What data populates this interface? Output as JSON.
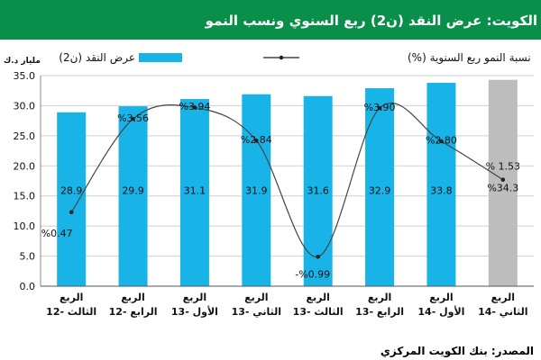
{
  "title": "الكويت: عرض النقد (ن2) ربع السنوي ونسب النمو",
  "source": "المصدر: بنك الكويت المركزي",
  "colors": {
    "bar": "#18b4e8",
    "bar_projection": "#bdbdbd",
    "title_bg": "#0a8f4a",
    "line": "#444444"
  },
  "chart_data": {
    "type": "bar",
    "ylabel": "مليار د.ك",
    "ylim": [
      0,
      35
    ],
    "yticks": [
      "0.0",
      "5.0",
      "10.0",
      "15.0",
      "20.0",
      "25.0",
      "30.0",
      "35.0"
    ],
    "grid": true,
    "categories": [
      [
        "الربع",
        "الثالث -12"
      ],
      [
        "الربع",
        "الرابع -12"
      ],
      [
        "الربع",
        "الأول -13"
      ],
      [
        "الربع",
        "الثاني -13"
      ],
      [
        "الربع",
        "الثالث -13"
      ],
      [
        "الربع",
        "الرابع -13"
      ],
      [
        "الربع",
        "الأول -14"
      ],
      [
        "الربع",
        "الثاني -14"
      ]
    ],
    "legend": {
      "bars": "عرض النقد (ن2)",
      "line": "نسبة النمو ربع السنوية (%)"
    },
    "series": [
      {
        "name": "عرض النقد (ن2)",
        "kind": "bar",
        "values": [
          28.9,
          29.9,
          31.1,
          31.9,
          31.6,
          32.9,
          33.8,
          34.3
        ],
        "labels": [
          "28.9",
          "29.9",
          "31.1",
          "31.9",
          "31.6",
          "32.9",
          "33.8",
          "%34.3"
        ]
      },
      {
        "name": "نسبة النمو ربع السنوية (%)",
        "kind": "line",
        "values": [
          0.47,
          3.56,
          3.94,
          2.84,
          -0.99,
          3.9,
          2.8,
          1.53
        ],
        "labels": [
          "%0.47",
          "%3.56",
          "%3.94",
          "%2.84",
          "-%0.99",
          "%3.90",
          "%2.80",
          "% 1.53"
        ],
        "plot_positions": [
          12.3,
          27.8,
          29.7,
          24.2,
          4.9,
          29.6,
          24.1,
          17.7
        ]
      }
    ]
  }
}
